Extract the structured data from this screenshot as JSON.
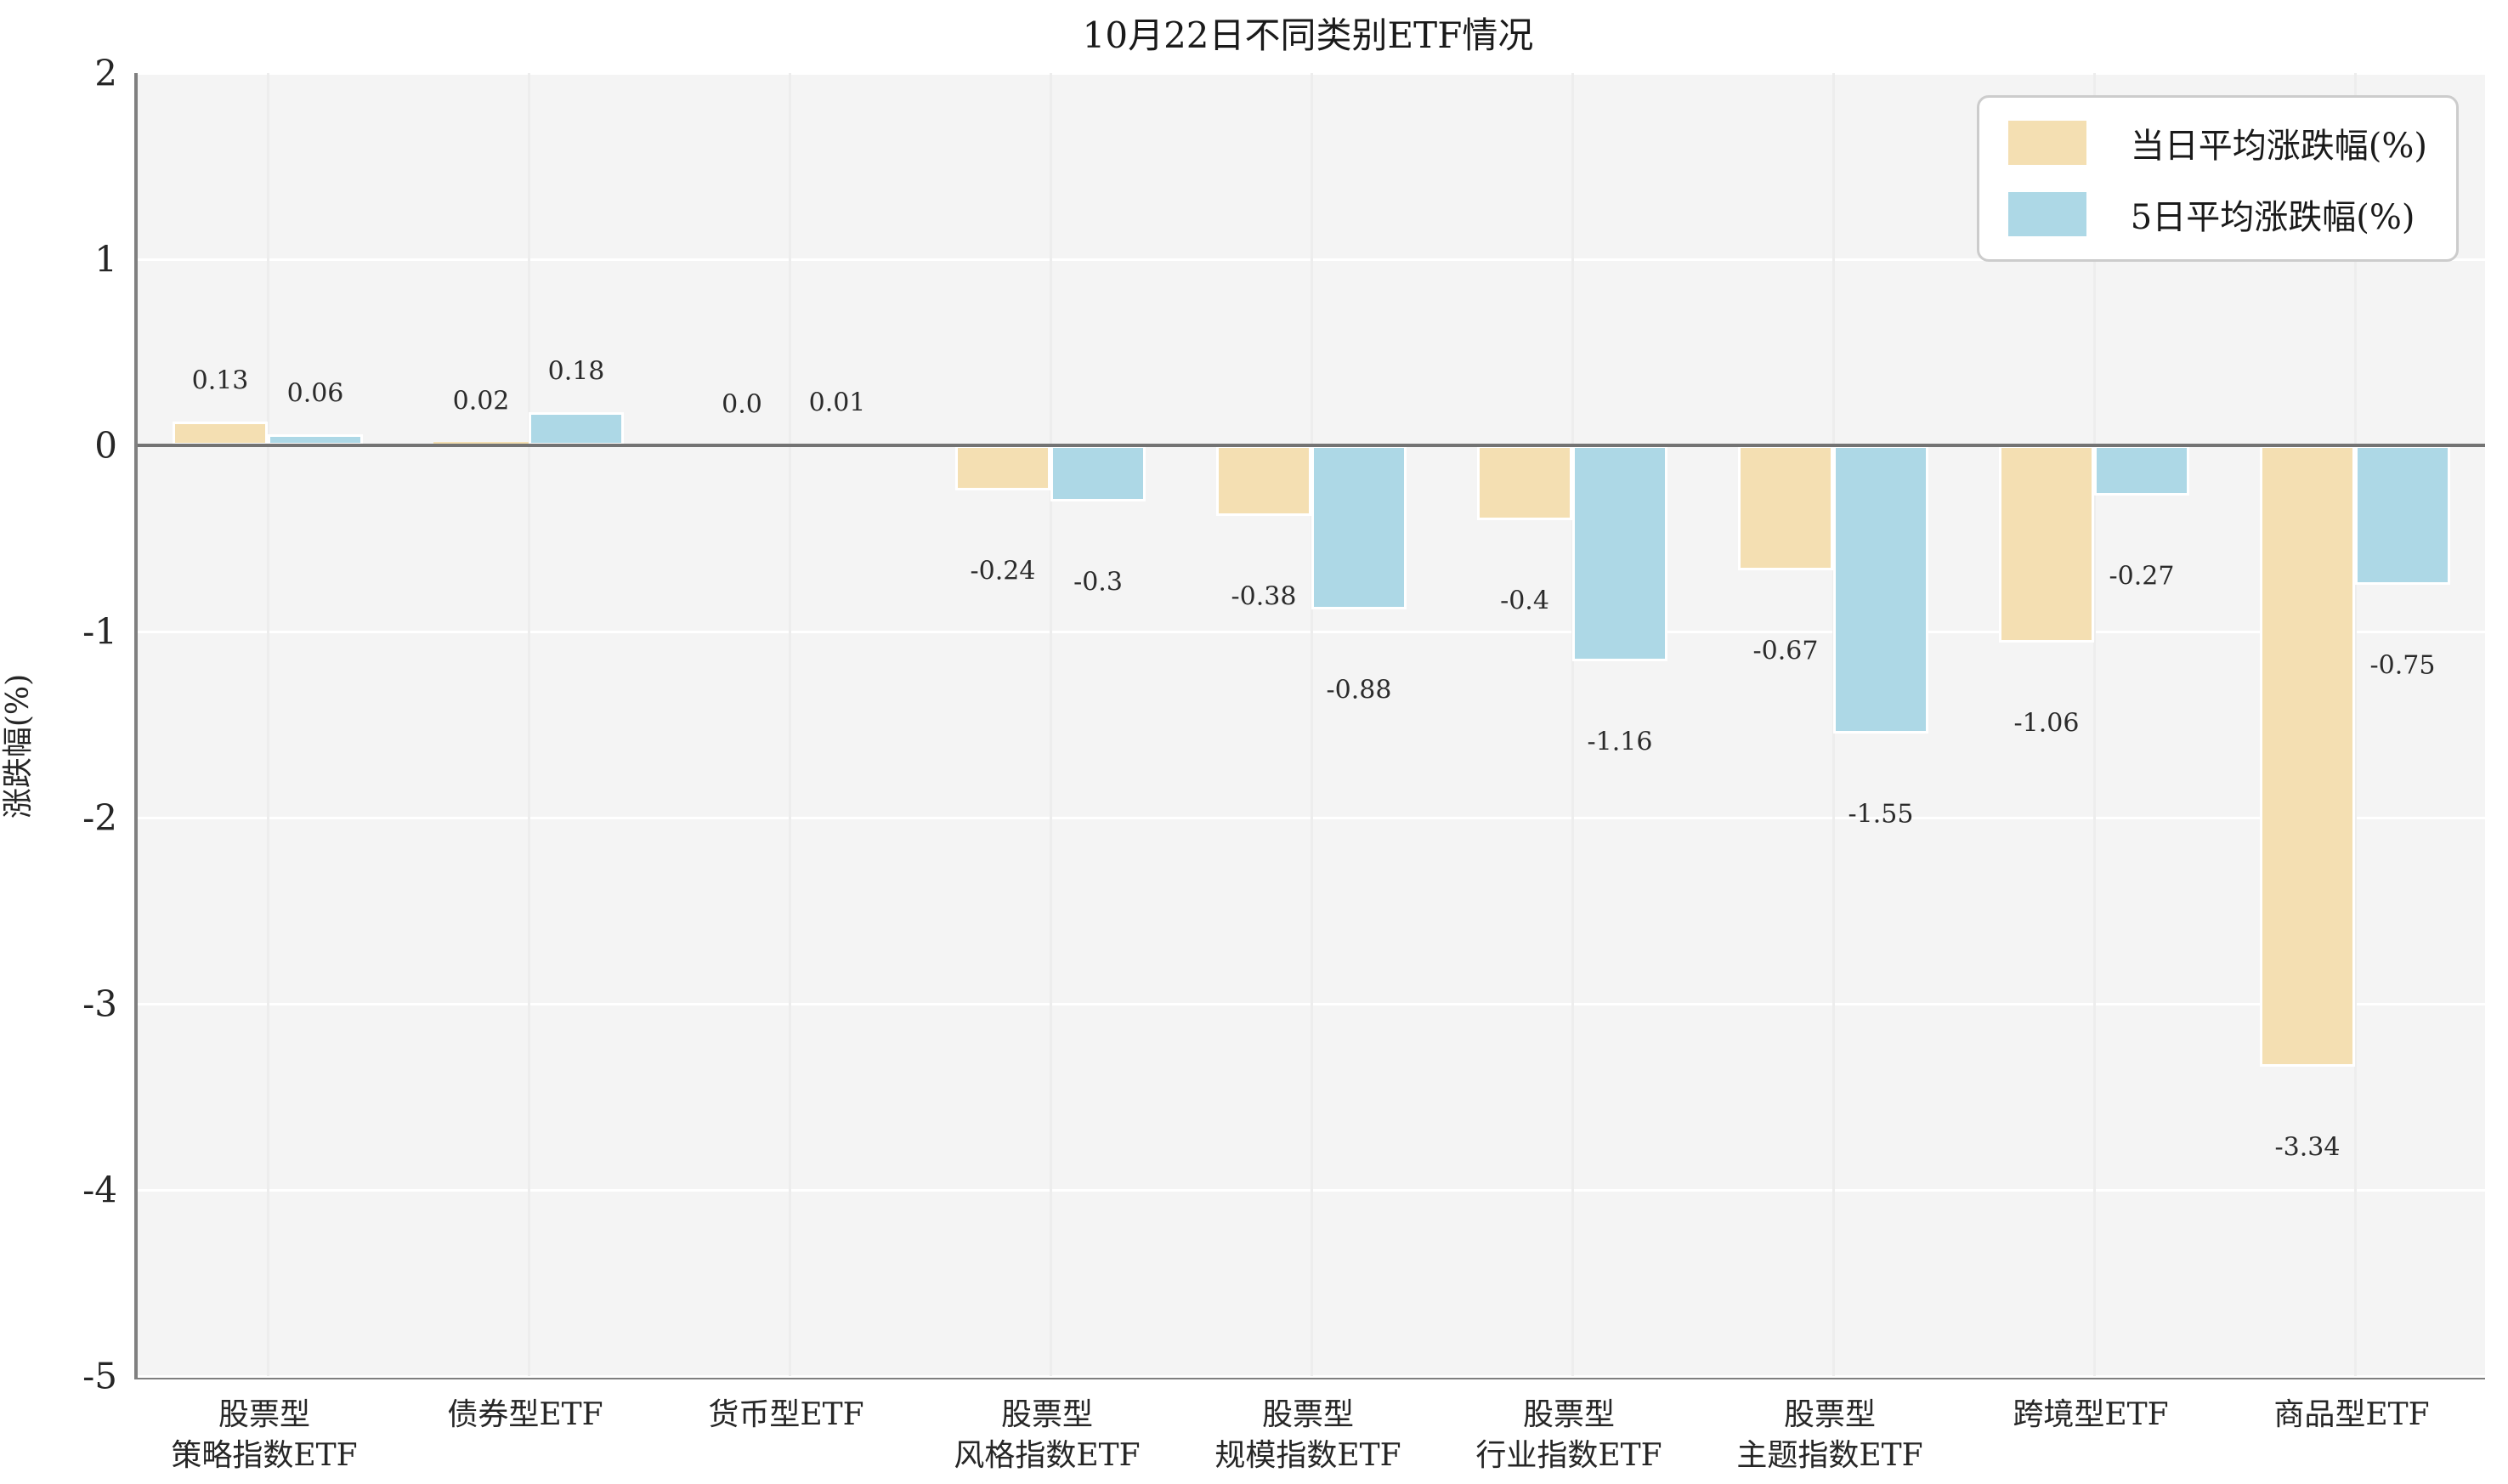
{
  "chart_data": {
    "type": "bar",
    "title": "10月22日不同类别ETF情况",
    "xlabel": "",
    "ylabel": "涨跌幅(%)",
    "ylim": [
      -5,
      2
    ],
    "yticks": [
      2,
      1,
      0,
      -1,
      -2,
      -3,
      -4,
      -5
    ],
    "grid": true,
    "legend_position": "upper right",
    "categories": [
      "股票型\n策略指数ETF",
      "债券型ETF",
      "货币型ETF",
      "股票型\n风格指数ETF",
      "股票型\n规模指数ETF",
      "股票型\n行业指数ETF",
      "股票型\n主题指数ETF",
      "跨境型ETF",
      "商品型ETF"
    ],
    "series": [
      {
        "name": "当日平均涨跌幅(%)",
        "color": "#f4dfb2",
        "values": [
          0.13,
          0.02,
          0.0,
          -0.24,
          -0.38,
          -0.4,
          -0.67,
          -1.06,
          -3.34
        ],
        "labels": [
          "0.13",
          "0.02",
          "0.0",
          "-0.24",
          "-0.38",
          "-0.4",
          "-0.67",
          "-1.06",
          "-3.34"
        ]
      },
      {
        "name": "5日平均涨跌幅(%)",
        "color": "#add8e6",
        "values": [
          0.06,
          0.18,
          0.01,
          -0.3,
          -0.88,
          -1.16,
          -1.55,
          -0.27,
          -0.75
        ],
        "labels": [
          "0.06",
          "0.18",
          "0.01",
          "-0.3",
          "-0.88",
          "-1.16",
          "-1.55",
          "-0.27",
          "-0.75"
        ]
      }
    ],
    "colors": {
      "plot_background": "#f4f4f4",
      "gridline": "#ffffff",
      "axis_line": "#7f7f7f",
      "zero_line": "#737373",
      "text": "#262626"
    }
  }
}
